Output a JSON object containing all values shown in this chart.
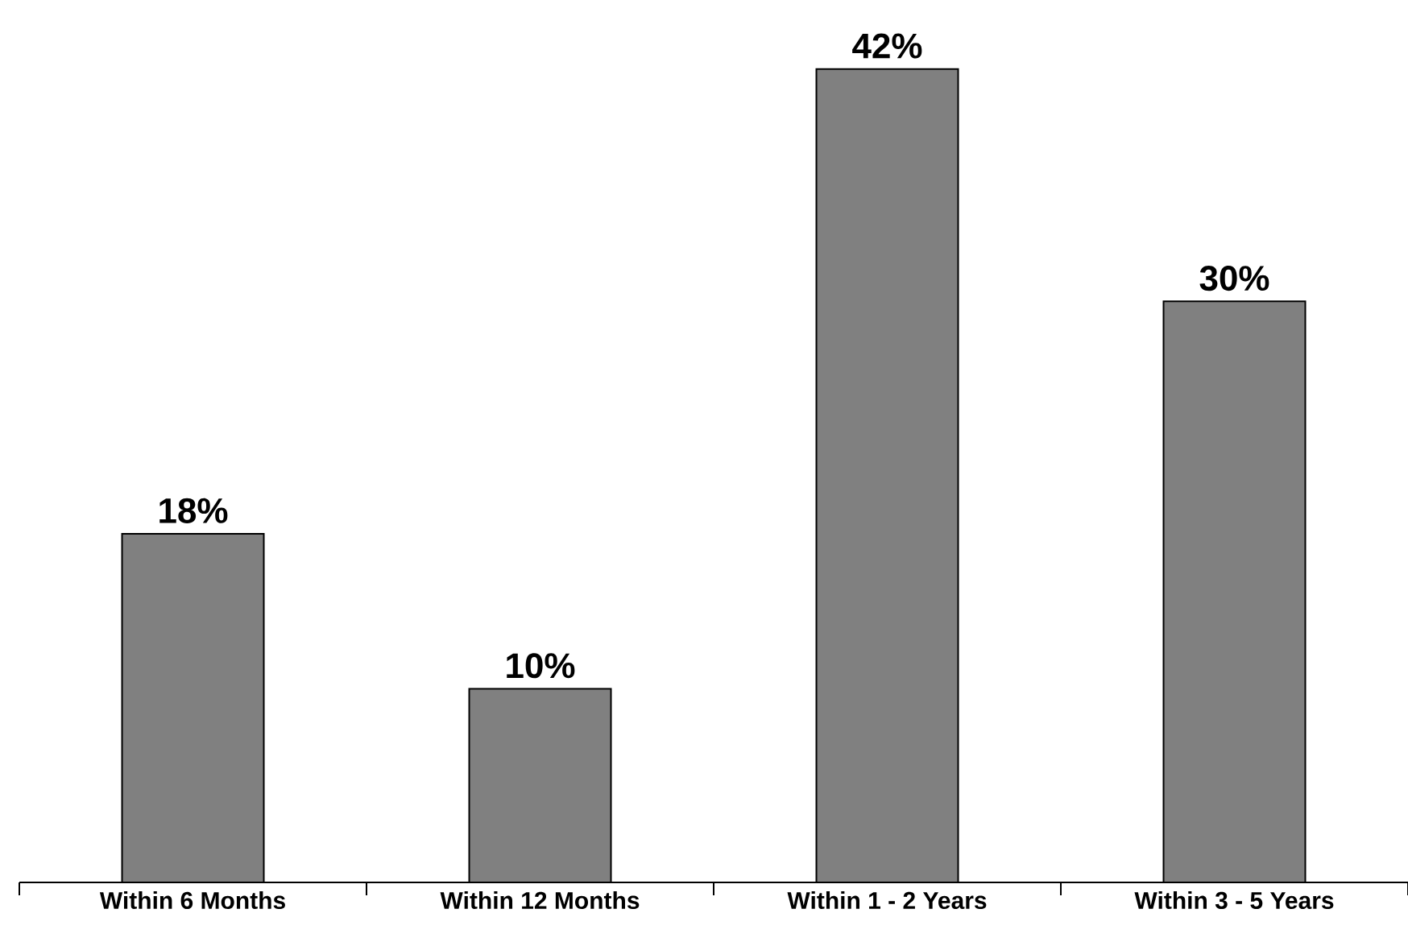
{
  "chart_data": {
    "type": "bar",
    "categories": [
      "Within 6 Months",
      "Within 12 Months",
      "Within 1 - 2 Years",
      "Within 3 - 5 Years"
    ],
    "values": [
      18,
      10,
      42,
      30
    ],
    "value_labels": [
      "18%",
      "10%",
      "42%",
      "30%"
    ],
    "color": "#808080"
  }
}
